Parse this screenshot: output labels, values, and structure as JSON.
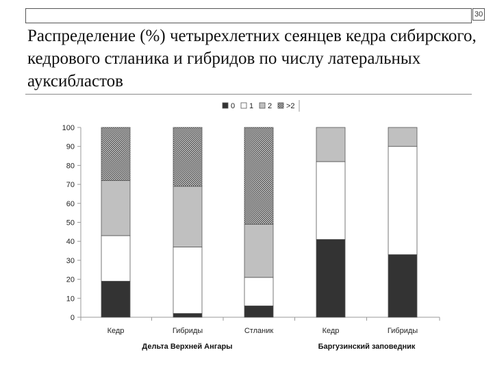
{
  "slide": {
    "number": "30",
    "title": "Распределение (%) четырехлетних сеянцев кедра сибирского, кедрового стланика и гибридов по числу латеральных ауксибластов"
  },
  "chart_data": {
    "type": "bar",
    "stacked": true,
    "categories": [
      "Кедр",
      "Гибриды",
      "Стланик",
      "Кедр",
      "Гибриды"
    ],
    "groups": [
      {
        "label": "Дельта Верхней Ангары",
        "categories": [
          0,
          1,
          2
        ]
      },
      {
        "label": "Баргузинский заповедник",
        "categories": [
          3,
          4
        ]
      }
    ],
    "series": [
      {
        "name": "0",
        "values": [
          19,
          2,
          6,
          41,
          33
        ]
      },
      {
        "name": "1",
        "values": [
          24,
          35,
          15,
          41,
          57
        ]
      },
      {
        "name": "2",
        "values": [
          29,
          32,
          28,
          18,
          10
        ]
      },
      {
        "name": ">2",
        "values": [
          28,
          31,
          51,
          0,
          0
        ]
      }
    ],
    "ylim": [
      0,
      100
    ],
    "yticks": [
      0,
      10,
      20,
      30,
      40,
      50,
      60,
      70,
      80,
      90,
      100
    ],
    "legend_position": "top",
    "grid": false,
    "colors": {
      "0": "#333333",
      "1": "#ffffff",
      "2": "#c0c0c0",
      ">2": "pattern-dots"
    }
  }
}
